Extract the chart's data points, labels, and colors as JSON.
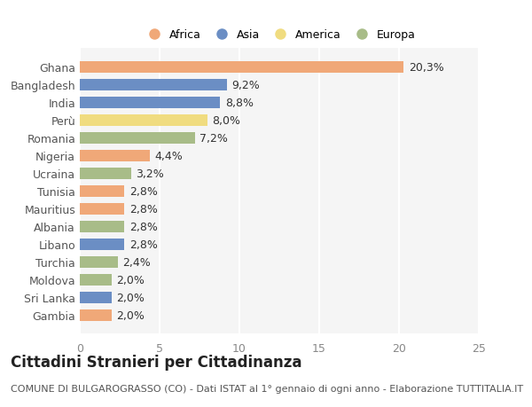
{
  "categories": [
    "Ghana",
    "Bangladesh",
    "India",
    "Perù",
    "Romania",
    "Nigeria",
    "Ucraina",
    "Tunisia",
    "Mauritius",
    "Albania",
    "Libano",
    "Turchia",
    "Moldova",
    "Sri Lanka",
    "Gambia"
  ],
  "values": [
    20.3,
    9.2,
    8.8,
    8.0,
    7.2,
    4.4,
    3.2,
    2.8,
    2.8,
    2.8,
    2.8,
    2.4,
    2.0,
    2.0,
    2.0
  ],
  "labels": [
    "20,3%",
    "9,2%",
    "8,8%",
    "8,0%",
    "7,2%",
    "4,4%",
    "3,2%",
    "2,8%",
    "2,8%",
    "2,8%",
    "2,8%",
    "2,4%",
    "2,0%",
    "2,0%",
    "2,0%"
  ],
  "continents": [
    "Africa",
    "Asia",
    "Asia",
    "America",
    "Europa",
    "Africa",
    "Europa",
    "Africa",
    "Africa",
    "Europa",
    "Asia",
    "Europa",
    "Europa",
    "Asia",
    "Africa"
  ],
  "colors": {
    "Africa": "#F0A878",
    "Asia": "#6B8EC4",
    "America": "#F0DC80",
    "Europa": "#A8BC88"
  },
  "legend_order": [
    "Africa",
    "Asia",
    "America",
    "Europa"
  ],
  "title": "Cittadini Stranieri per Cittadinanza",
  "subtitle": "COMUNE DI BULGAROGRASSO (CO) - Dati ISTAT al 1° gennaio di ogni anno - Elaborazione TUTTITALIA.IT",
  "xlim": [
    0,
    25
  ],
  "xticks": [
    0,
    5,
    10,
    15,
    20,
    25
  ],
  "bg_color": "#ffffff",
  "plot_bg_color": "#f5f5f5",
  "grid_color": "#ffffff",
  "bar_height": 0.65,
  "label_fontsize": 9,
  "tick_fontsize": 9,
  "title_fontsize": 12,
  "subtitle_fontsize": 8
}
